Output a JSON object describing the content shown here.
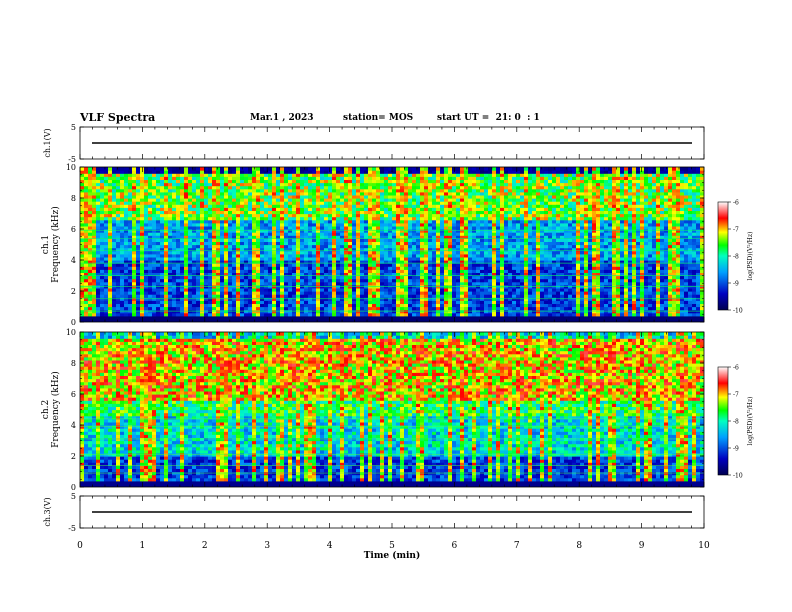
{
  "header": {
    "title": "VLF Spectra",
    "date": "Mar.1 , 2023",
    "station": "station= MOS",
    "start_ut": "start UT =  21: 0  : 1"
  },
  "colors": {
    "spectrum_low": "#00007a",
    "spectrum_mid": "#00c8ff",
    "spectrum_green": "#00ff40",
    "spectrum_yellow": "#ffff00",
    "spectrum_high": "#ff0000",
    "spectrum_top": "#ffffff"
  },
  "chart_data": [
    {
      "type": "line",
      "panel": "ch1-waveform",
      "ylabel": "ch.1(V)",
      "ylim": [
        -5,
        5
      ],
      "yticks": [
        "5",
        "-5"
      ],
      "xlim": [
        0,
        10
      ],
      "description_level": 0
    },
    {
      "type": "heatmap",
      "panel": "ch1-spectrogram",
      "ylabel": "ch.1\nFrequency (kHz)",
      "ylabel_line1": "ch.1",
      "ylabel_line2": "Frequency (kHz)",
      "ylim": [
        0,
        10
      ],
      "yticks": [
        "0",
        "2",
        "4",
        "6",
        "8",
        "10"
      ],
      "xlim": [
        0,
        10
      ],
      "colorbar": {
        "label": "log(PSD)(V²/Hz)",
        "range": [
          -10,
          -6
        ],
        "ticks": [
          "-6",
          "-7",
          "-8",
          "-9",
          "-10"
        ]
      }
    },
    {
      "type": "heatmap",
      "panel": "ch2-spectrogram",
      "ylabel_line1": "ch.2",
      "ylabel_line2": "Frequency (kHz)",
      "ylim": [
        0,
        10
      ],
      "yticks": [
        "0",
        "2",
        "4",
        "6",
        "8",
        "10"
      ],
      "xlim": [
        0,
        10
      ],
      "colorbar": {
        "label": "log(PSD)(V²/Hz)",
        "range": [
          -10,
          -6
        ],
        "ticks": [
          "-6",
          "-7",
          "-8",
          "-9",
          "-10"
        ]
      }
    },
    {
      "type": "line",
      "panel": "ch3-waveform",
      "ylabel": "ch.3(V)",
      "ylim": [
        -5,
        5
      ],
      "yticks": [
        "5",
        "-5"
      ],
      "xlim": [
        0,
        10
      ],
      "xlabel": "Time (min)",
      "xticks": [
        "0",
        "1",
        "2",
        "3",
        "4",
        "5",
        "6",
        "7",
        "8",
        "9",
        "10"
      ]
    }
  ]
}
